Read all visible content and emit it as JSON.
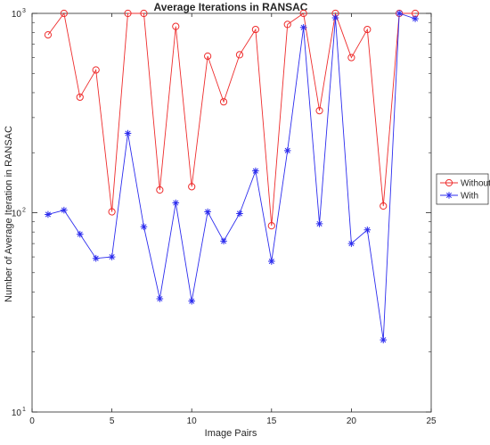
{
  "chart_data": {
    "type": "line",
    "title": "Average Iterations in RANSAC",
    "xlabel": "Image Pairs",
    "ylabel": "Number of Average Iteration in RANSAC",
    "xlim": [
      0,
      25
    ],
    "ylim": [
      10,
      1000
    ],
    "yscale": "log",
    "xticks": [
      0,
      5,
      10,
      15,
      20,
      25
    ],
    "yticks": [
      {
        "value": 10,
        "base": "10",
        "exp": "1"
      },
      {
        "value": 100,
        "base": "10",
        "exp": "2"
      },
      {
        "value": 1000,
        "base": "10",
        "exp": "3"
      }
    ],
    "grid": false,
    "legend_position": "right",
    "x": [
      1,
      2,
      3,
      4,
      5,
      6,
      7,
      8,
      9,
      10,
      11,
      12,
      13,
      14,
      15,
      16,
      17,
      18,
      19,
      20,
      21,
      22,
      23,
      24
    ],
    "series": [
      {
        "name": "Without",
        "color": "#ee2c2c",
        "marker": "circle",
        "values": [
          780,
          1000,
          380,
          520,
          101,
          1000,
          1000,
          130,
          860,
          135,
          610,
          360,
          620,
          830,
          86,
          880,
          1000,
          325,
          1000,
          600,
          830,
          108,
          1000,
          1000
        ]
      },
      {
        "name": "With",
        "color": "#2c2cee",
        "marker": "asterisk",
        "values": [
          98,
          103,
          78,
          59,
          60,
          250,
          85,
          37,
          112,
          36,
          101,
          72,
          99,
          162,
          57,
          205,
          850,
          88,
          950,
          70,
          82,
          23,
          1000,
          940
        ]
      }
    ]
  }
}
